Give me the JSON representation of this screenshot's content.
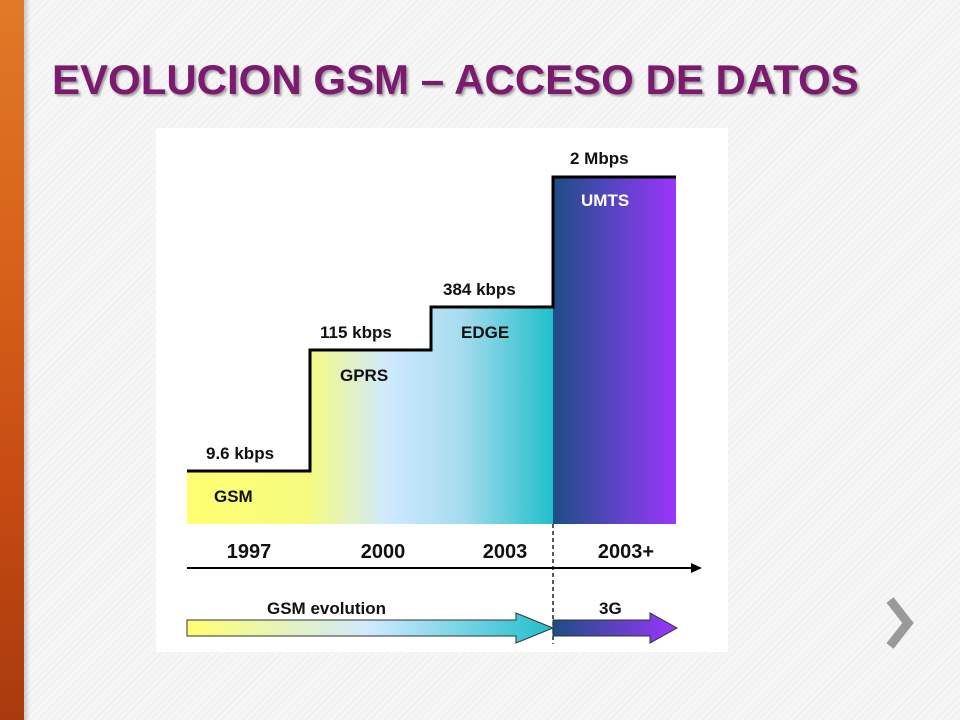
{
  "slide": {
    "title": "EVOLUCION GSM – ACCESO DE DATOS"
  },
  "diagram": {
    "steps": [
      {
        "speed": "9.6 kbps",
        "name": "GSM",
        "year": "1997"
      },
      {
        "speed": "115 kbps",
        "name": "GPRS",
        "year": "2000"
      },
      {
        "speed": "384 kbps",
        "name": "EDGE",
        "year": "2003"
      },
      {
        "speed": "2 Mbps",
        "name": "UMTS",
        "year": "2003+"
      }
    ],
    "phases": [
      {
        "label": "GSM evolution"
      },
      {
        "label": "3G"
      }
    ],
    "colors": {
      "gsm_yellow": "#ffff66",
      "edge_light_blue": "#cce8ff",
      "edge_cyan": "#22c0cc",
      "umts_dark_blue": "#1f4e86",
      "umts_purple": "#9933ff"
    }
  },
  "navigation": {
    "next_icon": "chevron-right-icon"
  }
}
